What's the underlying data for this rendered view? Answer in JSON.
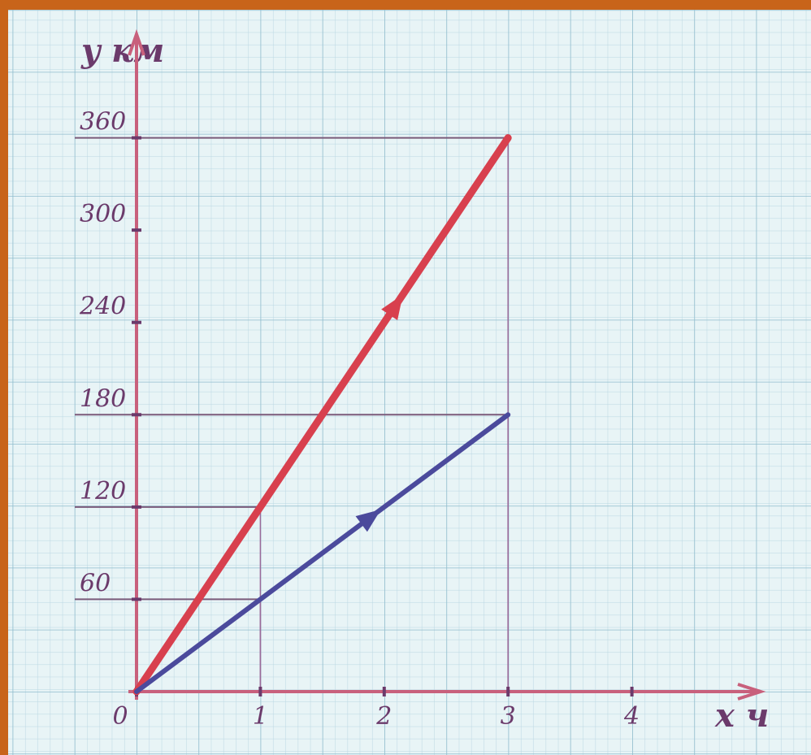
{
  "chart_data": {
    "type": "line",
    "y_label": "y км",
    "x_label": "x ч",
    "x": [
      0,
      1,
      3
    ],
    "series": [
      {
        "color": "#d8404e",
        "values": [
          0,
          120,
          360
        ]
      },
      {
        "color": "#4b4a9c",
        "values": [
          0,
          60,
          180
        ]
      }
    ],
    "xlim": [
      0,
      5
    ],
    "ylim": [
      0,
      420
    ],
    "xticks": [
      0,
      1,
      2,
      3,
      4
    ],
    "yticks": [
      60,
      120,
      180,
      240,
      300,
      360
    ],
    "grid": true
  }
}
